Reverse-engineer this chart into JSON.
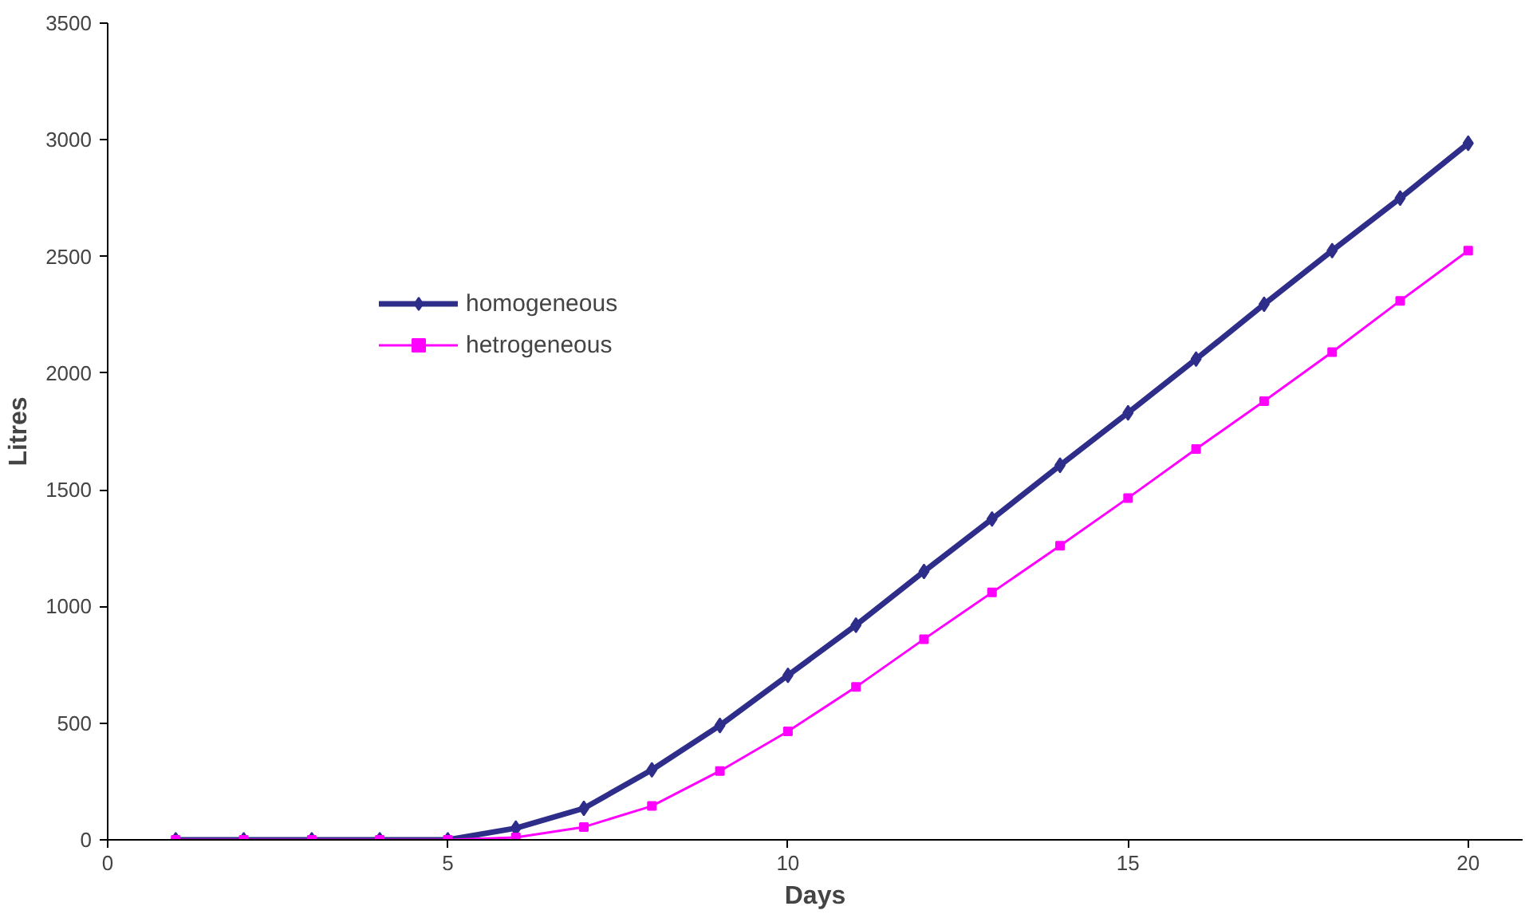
{
  "chart_data": {
    "type": "line",
    "xlabel": "Days",
    "ylabel": "Litres",
    "x": [
      1,
      2,
      3,
      4,
      5,
      6,
      7,
      8,
      9,
      10,
      11,
      12,
      13,
      14,
      15,
      16,
      17,
      18,
      19,
      20
    ],
    "series": [
      {
        "name": "homogeneous",
        "color": "#2e2e8a",
        "marker": "diamond",
        "values": [
          0,
          0,
          0,
          0,
          0,
          50,
          135,
          300,
          490,
          705,
          920,
          1150,
          1375,
          1605,
          1830,
          2060,
          2295,
          2525,
          2750,
          2985
        ]
      },
      {
        "name": "hetrogeneous",
        "color": "#ff00ff",
        "marker": "square",
        "values": [
          0,
          0,
          0,
          0,
          0,
          10,
          55,
          145,
          295,
          465,
          655,
          860,
          1060,
          1260,
          1465,
          1675,
          1880,
          2090,
          2310,
          2525
        ]
      }
    ],
    "xlim": [
      0,
      20.8
    ],
    "xticks": [
      0,
      5,
      10,
      15,
      20
    ],
    "ylim": [
      0,
      3500
    ],
    "yticks": [
      0,
      500,
      1000,
      1500,
      2000,
      2500,
      3000,
      3500
    ],
    "grid": false,
    "legend": "top left",
    "line_style": "solid"
  }
}
